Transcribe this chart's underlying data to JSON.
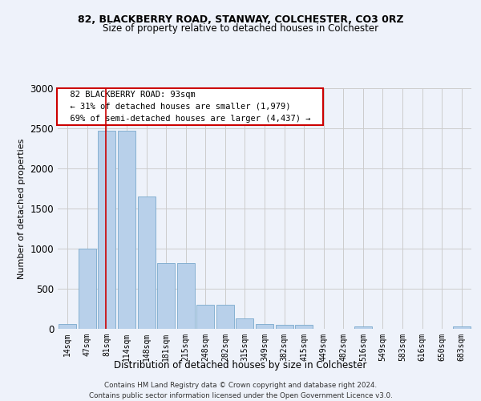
{
  "title1": "82, BLACKBERRY ROAD, STANWAY, COLCHESTER, CO3 0RZ",
  "title2": "Size of property relative to detached houses in Colchester",
  "xlabel": "Distribution of detached houses by size in Colchester",
  "ylabel": "Number of detached properties",
  "categories": [
    "14sqm",
    "47sqm",
    "81sqm",
    "114sqm",
    "148sqm",
    "181sqm",
    "215sqm",
    "248sqm",
    "282sqm",
    "315sqm",
    "349sqm",
    "382sqm",
    "415sqm",
    "449sqm",
    "482sqm",
    "516sqm",
    "549sqm",
    "583sqm",
    "616sqm",
    "650sqm",
    "683sqm"
  ],
  "values": [
    65,
    1000,
    2470,
    2470,
    1650,
    820,
    820,
    305,
    305,
    130,
    65,
    55,
    55,
    0,
    0,
    35,
    0,
    0,
    0,
    0,
    30
  ],
  "bar_color": "#b8d0ea",
  "bar_edge_color": "#7aaacc",
  "grid_color": "#cccccc",
  "annotation_text_line1": "82 BLACKBERRY ROAD: 93sqm",
  "annotation_text_line2": "← 31% of detached houses are smaller (1,979)",
  "annotation_text_line3": "69% of semi-detached houses are larger (4,437) →",
  "annotation_box_facecolor": "#ffffff",
  "annotation_box_edgecolor": "#cc0000",
  "vline_color": "#cc0000",
  "vline_x_index": 2,
  "ylim": [
    0,
    3000
  ],
  "yticks": [
    0,
    500,
    1000,
    1500,
    2000,
    2500,
    3000
  ],
  "footer_line1": "Contains HM Land Registry data © Crown copyright and database right 2024.",
  "footer_line2": "Contains public sector information licensed under the Open Government Licence v3.0.",
  "bg_color": "#eef2fa",
  "plot_bg_color": "#eef2fa"
}
